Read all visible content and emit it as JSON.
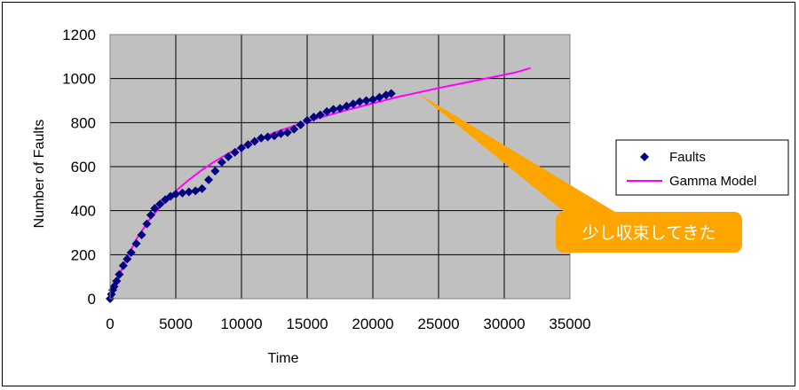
{
  "chart_data": {
    "type": "scatter",
    "title": "",
    "xlabel": "Time",
    "ylabel": "Number of Faults",
    "xlim": [
      0,
      35000
    ],
    "ylim": [
      0,
      1200
    ],
    "xticks": [
      0,
      5000,
      10000,
      15000,
      20000,
      25000,
      30000,
      35000
    ],
    "yticks": [
      0,
      200,
      400,
      600,
      800,
      1000,
      1200
    ],
    "grid": true,
    "plot_background": "#c0c0c0",
    "legend_position": "right",
    "series": [
      {
        "name": "Faults",
        "type": "scatter",
        "marker": "diamond",
        "color": "#000080",
        "points": [
          [
            0,
            0
          ],
          [
            100,
            20
          ],
          [
            200,
            40
          ],
          [
            300,
            55
          ],
          [
            500,
            80
          ],
          [
            700,
            110
          ],
          [
            1000,
            150
          ],
          [
            1300,
            180
          ],
          [
            1600,
            210
          ],
          [
            2000,
            250
          ],
          [
            2400,
            290
          ],
          [
            2800,
            340
          ],
          [
            3100,
            380
          ],
          [
            3400,
            410
          ],
          [
            3800,
            430
          ],
          [
            4200,
            450
          ],
          [
            4600,
            465
          ],
          [
            5000,
            475
          ],
          [
            5500,
            480
          ],
          [
            6000,
            485
          ],
          [
            6500,
            490
          ],
          [
            7000,
            500
          ],
          [
            7500,
            540
          ],
          [
            8000,
            580
          ],
          [
            8500,
            620
          ],
          [
            9000,
            645
          ],
          [
            9500,
            665
          ],
          [
            10000,
            685
          ],
          [
            10500,
            700
          ],
          [
            11000,
            715
          ],
          [
            11500,
            730
          ],
          [
            12000,
            735
          ],
          [
            12500,
            740
          ],
          [
            13000,
            750
          ],
          [
            13500,
            755
          ],
          [
            14000,
            770
          ],
          [
            14500,
            790
          ],
          [
            15000,
            810
          ],
          [
            15500,
            825
          ],
          [
            16000,
            835
          ],
          [
            16500,
            850
          ],
          [
            17000,
            860
          ],
          [
            17500,
            865
          ],
          [
            18000,
            875
          ],
          [
            18500,
            885
          ],
          [
            19000,
            895
          ],
          [
            19500,
            900
          ],
          [
            20000,
            905
          ],
          [
            20500,
            915
          ],
          [
            21000,
            925
          ],
          [
            21400,
            932
          ]
        ]
      },
      {
        "name": "Gamma Model",
        "type": "line",
        "color": "#ff00ff",
        "points": [
          [
            0,
            0
          ],
          [
            1000,
            150
          ],
          [
            2000,
            270
          ],
          [
            3000,
            360
          ],
          [
            4000,
            430
          ],
          [
            5000,
            490
          ],
          [
            6000,
            540
          ],
          [
            7000,
            585
          ],
          [
            8000,
            625
          ],
          [
            9000,
            660
          ],
          [
            10000,
            690
          ],
          [
            11000,
            718
          ],
          [
            12000,
            742
          ],
          [
            13000,
            765
          ],
          [
            14000,
            785
          ],
          [
            15000,
            805
          ],
          [
            16000,
            823
          ],
          [
            17000,
            840
          ],
          [
            18000,
            857
          ],
          [
            19000,
            872
          ],
          [
            20000,
            888
          ],
          [
            21000,
            903
          ],
          [
            22000,
            918
          ],
          [
            23000,
            931
          ],
          [
            24000,
            944
          ],
          [
            25000,
            957
          ],
          [
            26000,
            969
          ],
          [
            27000,
            981
          ],
          [
            28000,
            993
          ],
          [
            29000,
            1005
          ],
          [
            30000,
            1017
          ],
          [
            31000,
            1030
          ],
          [
            32000,
            1048
          ]
        ]
      }
    ],
    "annotations": [
      {
        "text": "少し収束してきた",
        "color": "#ffa500",
        "text_color": "#ffffff",
        "pointer_target": [
          23500,
          955
        ]
      }
    ]
  }
}
